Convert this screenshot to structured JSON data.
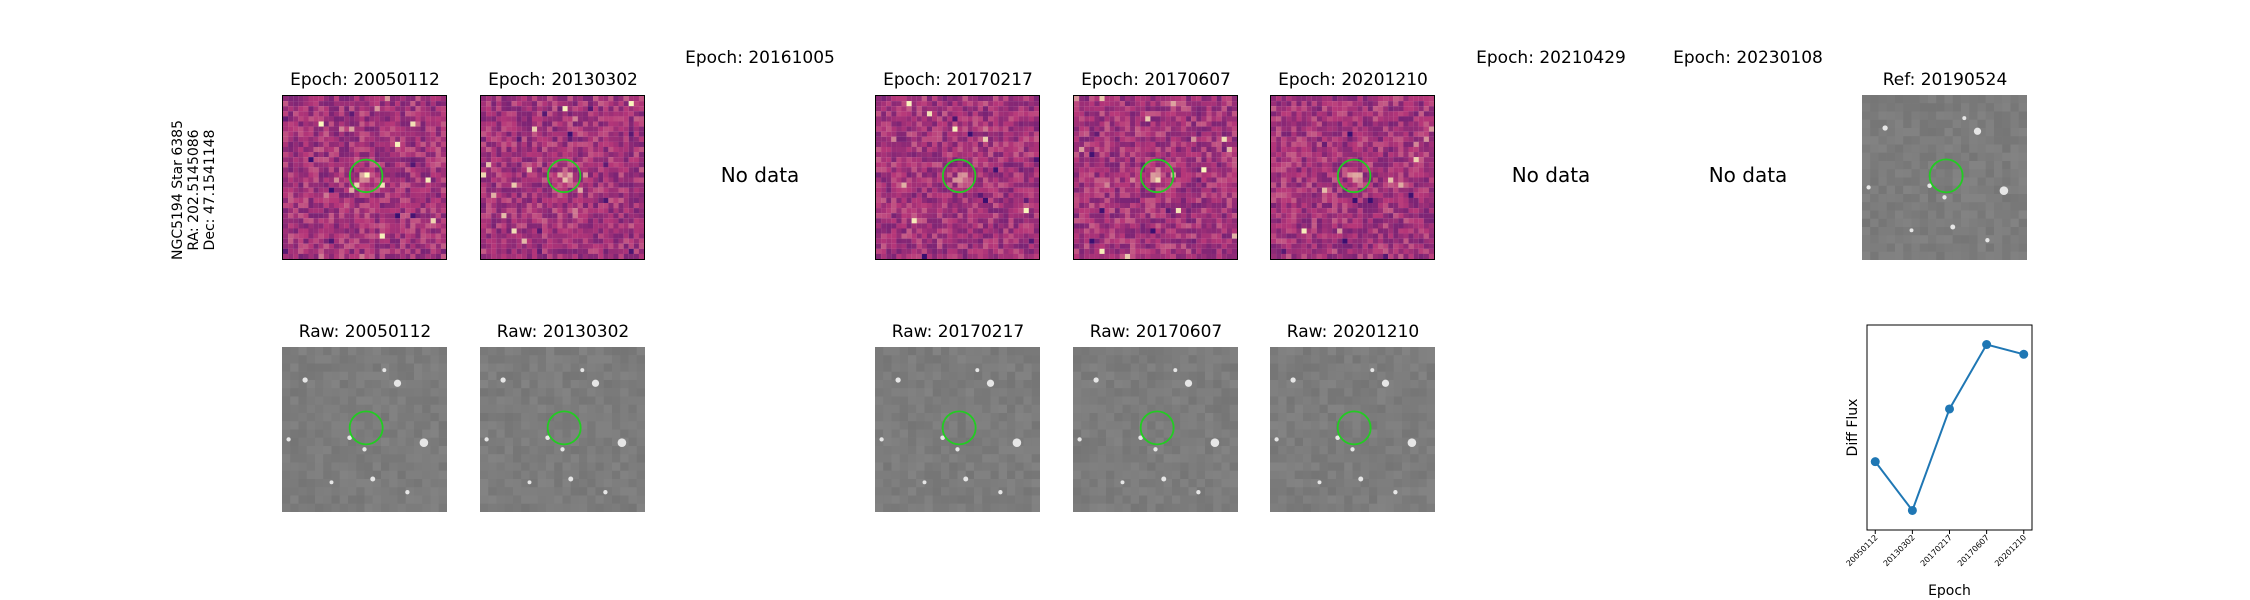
{
  "star": {
    "name": "NGC5194 Star 6385",
    "ra": "RA: 202.5145086",
    "dec": "Dec: 47.1541148"
  },
  "nodata_label": "No data",
  "diff_row": [
    {
      "title": "Epoch: 20050112",
      "has_data": true
    },
    {
      "title": "Epoch: 20130302",
      "has_data": true
    },
    {
      "title": "Epoch: 20161005",
      "has_data": false
    },
    {
      "title": "Epoch: 20170217",
      "has_data": true
    },
    {
      "title": "Epoch: 20170607",
      "has_data": true
    },
    {
      "title": "Epoch: 20201210",
      "has_data": true
    },
    {
      "title": "Epoch: 20210429",
      "has_data": false
    },
    {
      "title": "Epoch: 20230108",
      "has_data": false
    },
    {
      "title": "Ref: 20190524",
      "has_data": true
    }
  ],
  "raw_row": [
    {
      "title": "Raw: 20050112"
    },
    {
      "title": "Raw: 20130302"
    },
    {
      "title": "Raw: 20170217"
    },
    {
      "title": "Raw: 20170607"
    },
    {
      "title": "Raw: 20201210"
    }
  ],
  "colors": {
    "circle": "#22cc22",
    "series": "#1f77b4",
    "diff_dark": "#3b0f70",
    "diff_mid": "#b73779",
    "diff_light": "#fcfdbf",
    "raw_bg": "#808080"
  },
  "chart_data": {
    "type": "line",
    "title": "",
    "xlabel": "Epoch",
    "ylabel": "Diff Flux",
    "categories": [
      "20050112",
      "20130302",
      "20170217",
      "20170607",
      "20201210"
    ],
    "values": [
      0.35,
      0.1,
      0.62,
      0.95,
      0.9
    ],
    "ylim": [
      0,
      1.05
    ],
    "y_ticks_shown": false,
    "grid": false,
    "legend": "none"
  }
}
